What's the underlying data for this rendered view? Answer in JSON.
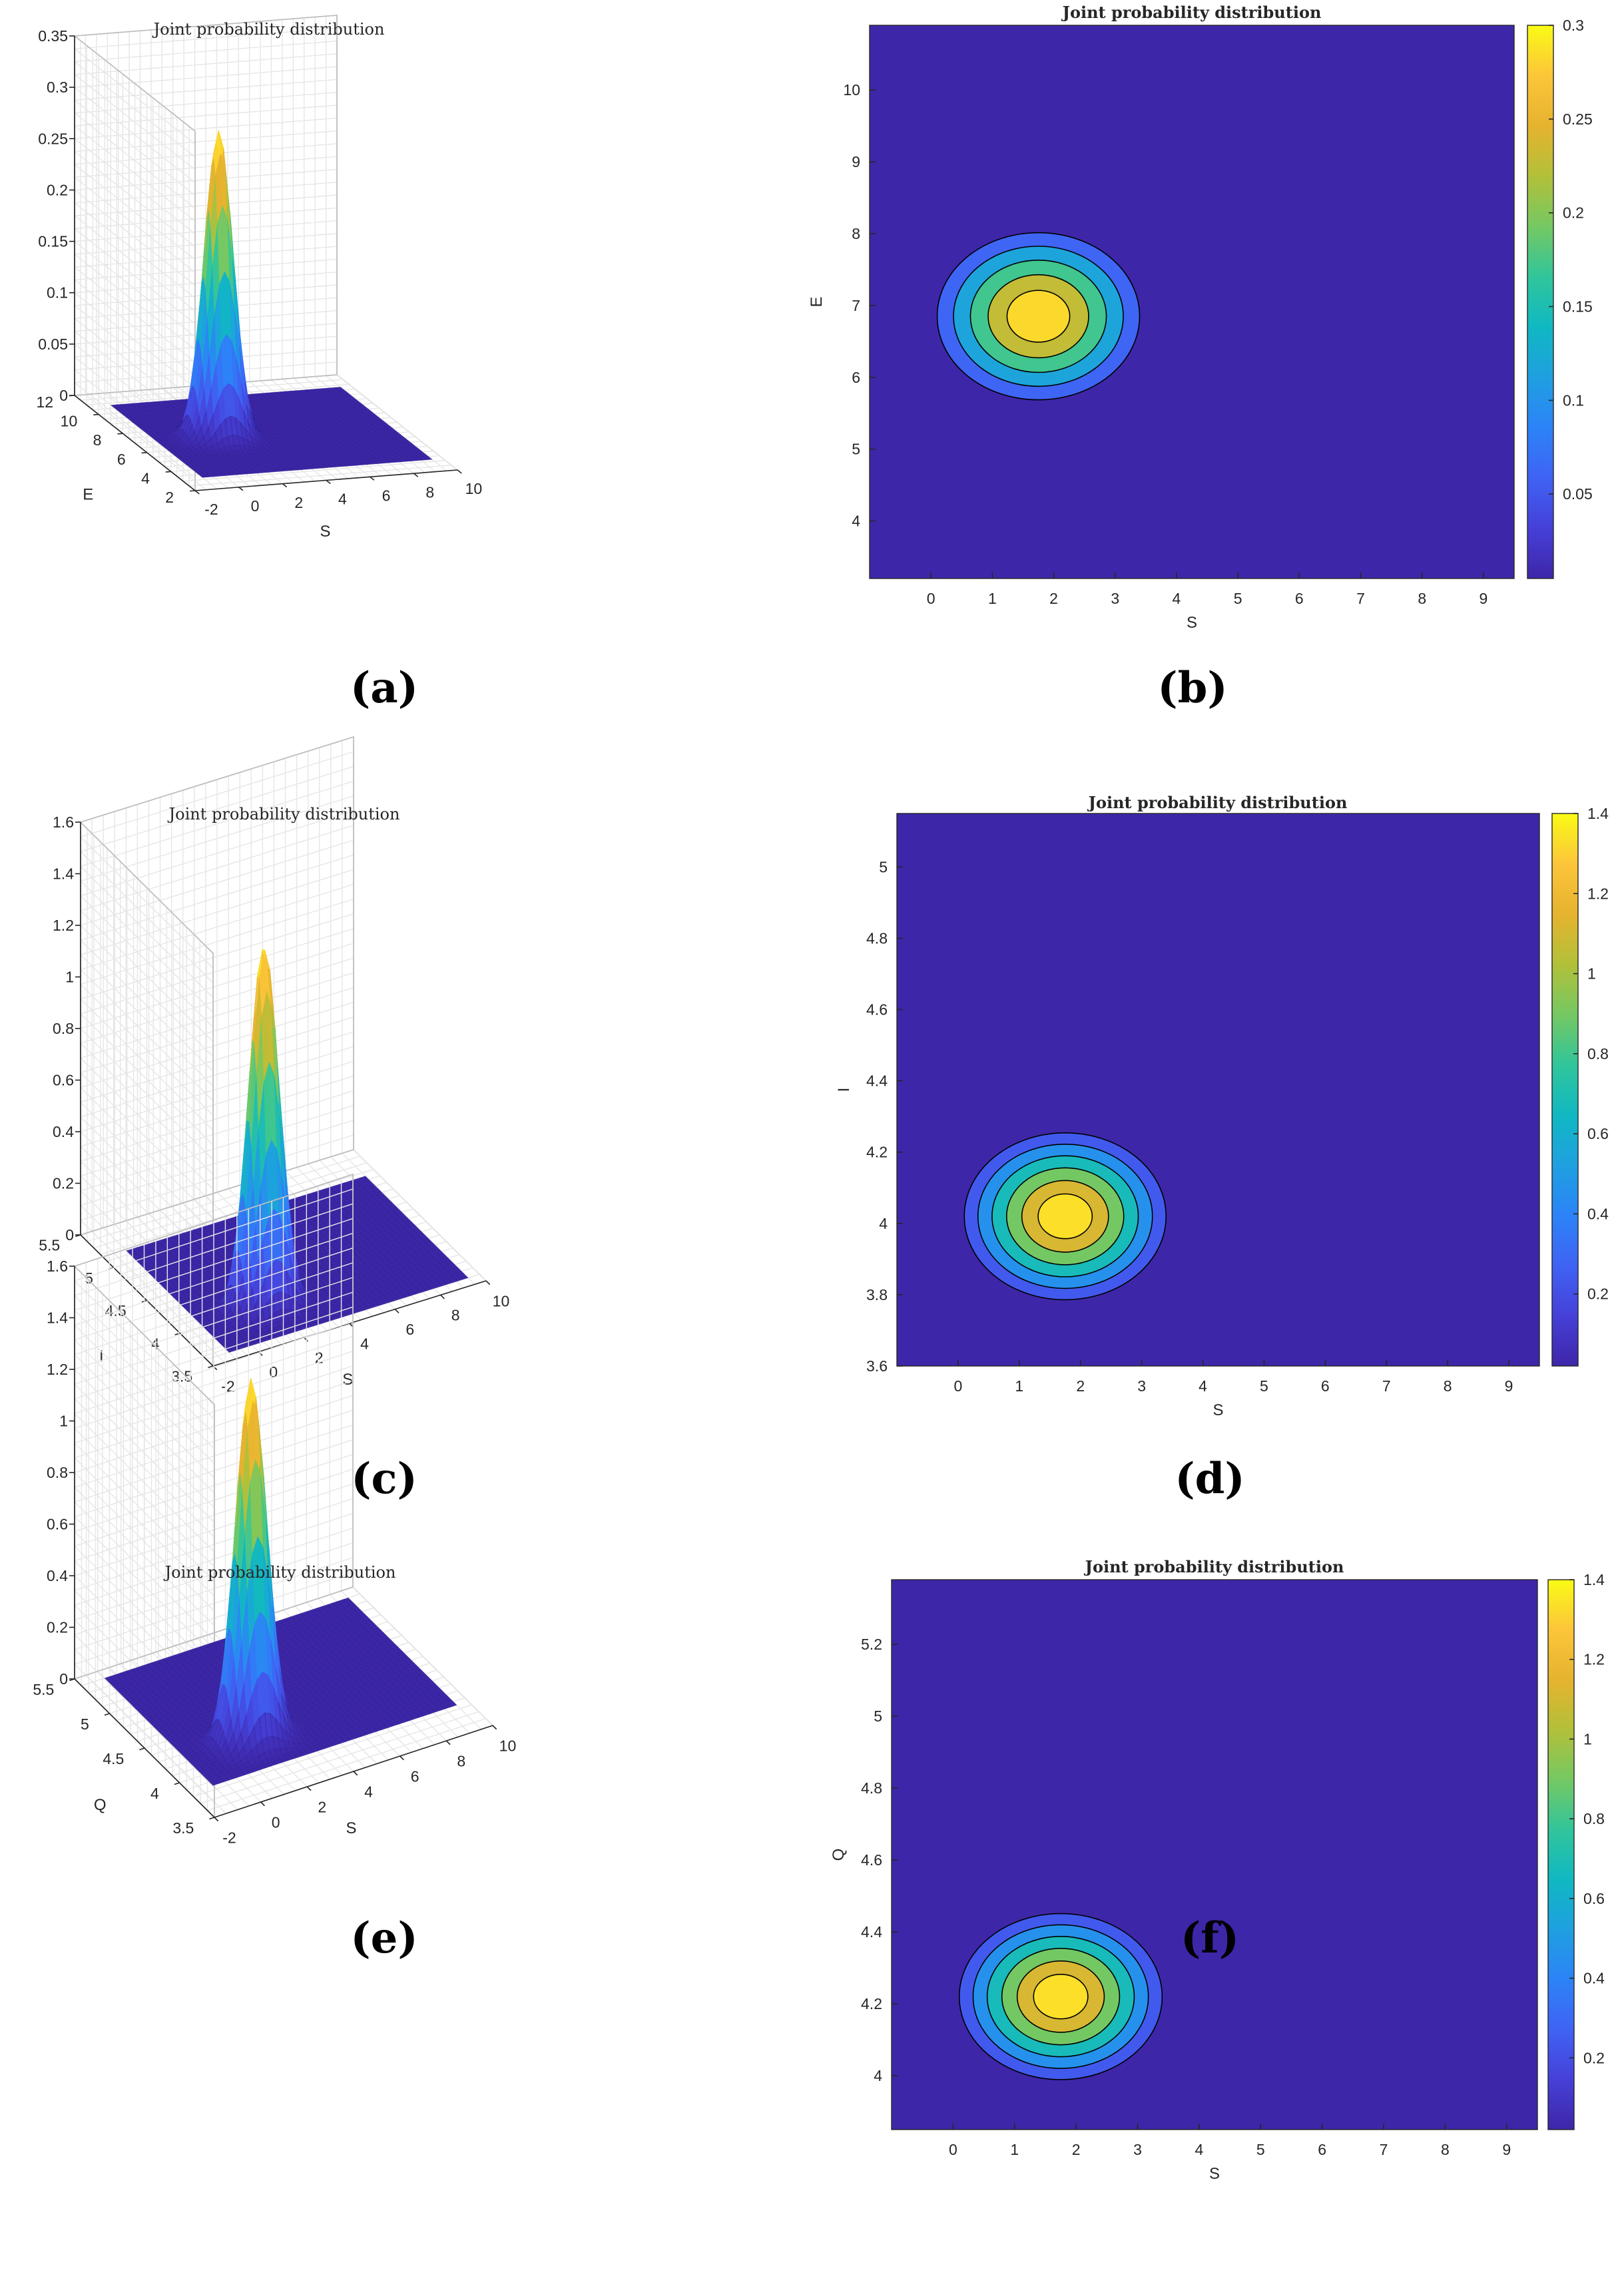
{
  "colors": {
    "background": "#ffffff",
    "parula": [
      "#3e26a8",
      "#4640d8",
      "#3f63f4",
      "#2c83f7",
      "#1fa0e0",
      "#10b8c2",
      "#31c59b",
      "#75c863",
      "#b2c039",
      "#e6b32f",
      "#fcc53a",
      "#f9fb15"
    ]
  },
  "chart_data": [
    {
      "id": "a",
      "type": "surface",
      "panel_label": "(a)",
      "title": "Joint probability distribution",
      "xlabel": "S",
      "ylabel": "E",
      "zlabel": "",
      "xlim": [
        -2,
        10
      ],
      "ylim": [
        2,
        12
      ],
      "zlim": [
        0,
        0.35
      ],
      "xticks": [
        "-2",
        "0",
        "2",
        "4",
        "6",
        "8",
        "10"
      ],
      "yticks": [
        "2",
        "4",
        "6",
        "8",
        "10",
        "12"
      ],
      "zticks": [
        "0",
        "0.05",
        "0.1",
        "0.15",
        "0.2",
        "0.25",
        "0.3",
        "0.35"
      ],
      "domain_x": [
        -1,
        9.5
      ],
      "domain_y": [
        3.2,
        10.8
      ],
      "peak": {
        "x": 1.75,
        "y": 6.85,
        "z": 0.3
      }
    },
    {
      "id": "b",
      "type": "contour",
      "panel_label": "(b)",
      "title": "Joint probability distribution",
      "xlabel": "S",
      "ylabel": "E",
      "xlim": [
        -1,
        9.5
      ],
      "ylim": [
        3.2,
        10.9
      ],
      "xticks": [
        "0",
        "1",
        "2",
        "3",
        "4",
        "5",
        "6",
        "7",
        "8",
        "9"
      ],
      "yticks": [
        "4",
        "5",
        "6",
        "7",
        "8",
        "9",
        "10"
      ],
      "center": {
        "x": 1.75,
        "y": 6.85
      },
      "levels": [
        0.05,
        0.1,
        0.15,
        0.2,
        0.25
      ],
      "colorbar_lim": [
        0.005,
        0.3
      ],
      "colorbar_ticks": [
        "0.05",
        "0.1",
        "0.15",
        "0.2",
        "0.25",
        "0.3"
      ]
    },
    {
      "id": "c",
      "type": "surface",
      "panel_label": "(c)",
      "title": "Joint probability distribution",
      "xlabel": "S",
      "ylabel": "I",
      "zlabel": "",
      "xlim": [
        -2,
        10
      ],
      "ylim": [
        3.5,
        5.5
      ],
      "zlim": [
        0,
        1.6
      ],
      "xticks": [
        "-2",
        "0",
        "2",
        "4",
        "6",
        "8",
        "10"
      ],
      "yticks": [
        "3.5",
        "4",
        "4.5",
        "5",
        "5.5"
      ],
      "zticks": [
        "0",
        "0.2",
        "0.4",
        "0.6",
        "0.8",
        "1",
        "1.2",
        "1.4",
        "1.6"
      ],
      "domain_x": [
        -1,
        9.5
      ],
      "domain_y": [
        3.6,
        5.15
      ],
      "peak": {
        "x": 1.75,
        "y": 4.02,
        "z": 1.4
      }
    },
    {
      "id": "d",
      "type": "contour",
      "panel_label": "(d)",
      "title": "Joint probability distribution",
      "xlabel": "S",
      "ylabel": "I",
      "xlim": [
        -1,
        9.5
      ],
      "ylim": [
        3.6,
        5.15
      ],
      "xticks": [
        "0",
        "1",
        "2",
        "3",
        "4",
        "5",
        "6",
        "7",
        "8",
        "9"
      ],
      "yticks": [
        "3.6",
        "3.8",
        "4",
        "4.2",
        "4.4",
        "4.6",
        "4.8",
        "5"
      ],
      "center": {
        "x": 1.75,
        "y": 4.02
      },
      "levels": [
        0.2,
        0.4,
        0.6,
        0.8,
        1.0,
        1.2
      ],
      "colorbar_lim": [
        0.02,
        1.4
      ],
      "colorbar_ticks": [
        "0.2",
        "0.4",
        "0.6",
        "0.8",
        "1",
        "1.2",
        "1.4"
      ]
    },
    {
      "id": "e",
      "type": "surface",
      "panel_label": "(e)",
      "title": "Joint probability distribution",
      "xlabel": "S",
      "ylabel": "Q",
      "zlabel": "",
      "xlim": [
        -2,
        10
      ],
      "ylim": [
        3.5,
        5.5
      ],
      "zlim": [
        0,
        1.6
      ],
      "xticks": [
        "-2",
        "0",
        "2",
        "4",
        "6",
        "8",
        "10"
      ],
      "yticks": [
        "3.5",
        "4",
        "4.5",
        "5",
        "5.5"
      ],
      "zticks": [
        "0",
        "0.2",
        "0.4",
        "0.6",
        "0.8",
        "1",
        "1.2",
        "1.4",
        "1.6"
      ],
      "domain_x": [
        -1,
        9.5
      ],
      "domain_y": [
        3.85,
        5.4
      ],
      "peak": {
        "x": 1.75,
        "y": 4.22,
        "z": 1.4
      }
    },
    {
      "id": "f",
      "type": "contour",
      "panel_label": "(f)",
      "title": "Joint probability distribution",
      "xlabel": "S",
      "ylabel": "Q",
      "xlim": [
        -1,
        9.5
      ],
      "ylim": [
        3.85,
        5.38
      ],
      "xticks": [
        "0",
        "1",
        "2",
        "3",
        "4",
        "5",
        "6",
        "7",
        "8",
        "9"
      ],
      "yticks": [
        "4",
        "4.2",
        "4.4",
        "4.6",
        "4.8",
        "5",
        "5.2"
      ],
      "center": {
        "x": 1.75,
        "y": 4.22
      },
      "levels": [
        0.2,
        0.4,
        0.6,
        0.8,
        1.0,
        1.2
      ],
      "colorbar_lim": [
        0.02,
        1.4
      ],
      "colorbar_ticks": [
        "0.2",
        "0.4",
        "0.6",
        "0.8",
        "1",
        "1.2",
        "1.4"
      ]
    }
  ]
}
